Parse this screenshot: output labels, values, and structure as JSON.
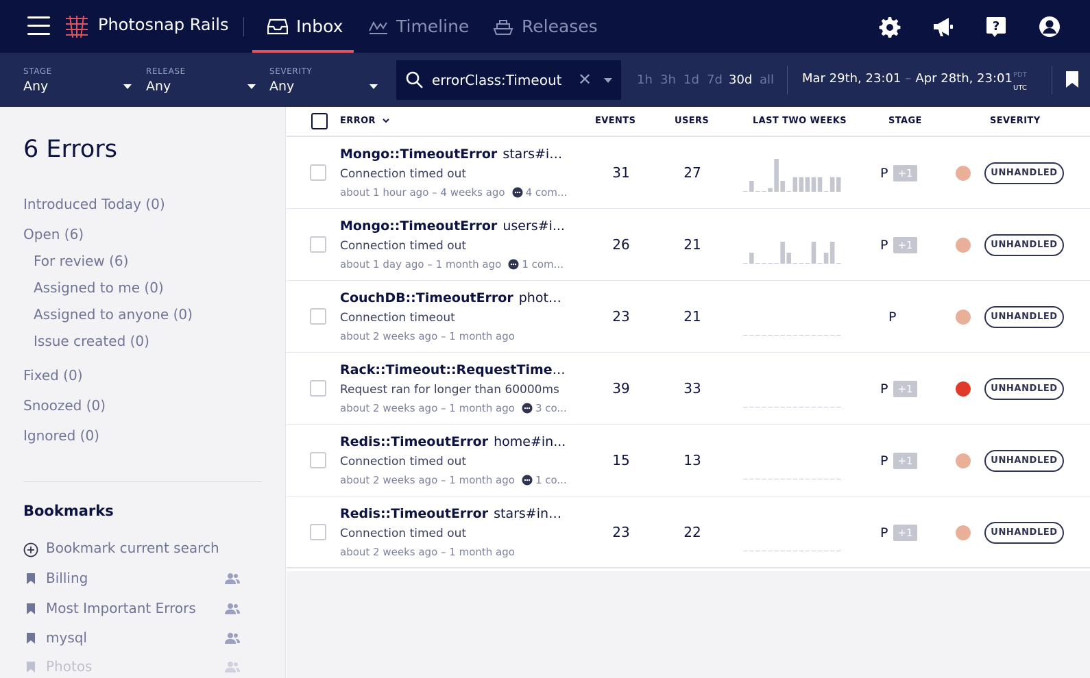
{
  "app": {
    "name": "Photosnap Rails",
    "accent_color": "#e0555d",
    "nav_bg": "#0a1240",
    "filterbar_bg": "#1e2956"
  },
  "nav": {
    "tabs": [
      {
        "label": "Inbox",
        "icon": "inbox-icon",
        "active": true
      },
      {
        "label": "Timeline",
        "icon": "timeline-icon",
        "active": false
      },
      {
        "label": "Releases",
        "icon": "ship-icon",
        "active": false
      }
    ],
    "icons": [
      "gear-icon",
      "megaphone-icon",
      "help-icon",
      "user-icon"
    ]
  },
  "filters": {
    "stage": {
      "label": "STAGE",
      "value": "Any"
    },
    "release": {
      "label": "RELEASE",
      "value": "Any"
    },
    "severity": {
      "label": "SEVERITY",
      "value": "Any"
    }
  },
  "search": {
    "value": "errorClass:Timeout",
    "clear": "✕"
  },
  "time_ranges": [
    {
      "label": "1h",
      "active": false
    },
    {
      "label": "3h",
      "active": false
    },
    {
      "label": "1d",
      "active": false
    },
    {
      "label": "7d",
      "active": false
    },
    {
      "label": "30d",
      "active": true
    },
    {
      "label": "all",
      "active": false
    }
  ],
  "date_range": {
    "from": "Mar 29th, 23:01",
    "separator": "–",
    "to": "Apr 28th, 23:01",
    "tz_top": "PDT",
    "tz_bottom": "UTC"
  },
  "sidebar": {
    "count_title": "6 Errors",
    "links": [
      {
        "label": "Introduced Today (0)"
      },
      {
        "label": "Open (6)"
      },
      {
        "label": "For review (6)"
      },
      {
        "label": "Assigned to me (0)"
      },
      {
        "label": "Assigned to anyone (0)"
      },
      {
        "label": "Issue created (0)"
      },
      {
        "label": "Fixed (0)"
      },
      {
        "label": "Snoozed (0)"
      },
      {
        "label": "Ignored (0)"
      }
    ],
    "bookmarks_title": "Bookmarks",
    "add_bookmark": "Bookmark current search",
    "bookmarks": [
      {
        "label": "Billing",
        "shared": true
      },
      {
        "label": "Most Important Errors",
        "shared": true
      },
      {
        "label": "mysql",
        "shared": true
      },
      {
        "label": "Photos",
        "shared": true
      }
    ]
  },
  "table": {
    "headers": {
      "error": "ERROR",
      "events": "EVENTS",
      "users": "USERS",
      "trend": "LAST TWO WEEKS",
      "stage": "STAGE",
      "severity": "SEVERITY"
    },
    "rows": [
      {
        "error_class": "Mongo::TimeoutError",
        "context": "stars#in...",
        "message": "Connection timed out",
        "time": "about 1 hour ago – 4 weeks ago",
        "comments": "4 com...",
        "events": "31",
        "users": "27",
        "stage": "P",
        "stage_extra": "+1",
        "severity_color": "#e8b098",
        "severity": "UNHANDLED",
        "trend": [
          0,
          3,
          0,
          0,
          1,
          9,
          3,
          0,
          4,
          4,
          4,
          4,
          4,
          0,
          4,
          4
        ]
      },
      {
        "error_class": "Mongo::TimeoutError",
        "context": "users#i...",
        "message": "Connection timed out",
        "time": "about 1 day ago – 1 month ago",
        "comments": "1 com...",
        "events": "26",
        "users": "21",
        "stage": "P",
        "stage_extra": "+1",
        "severity_color": "#e8b098",
        "severity": "UNHANDLED",
        "trend": [
          0,
          3,
          0,
          0,
          0,
          0,
          6,
          3,
          0,
          0,
          0,
          6,
          0,
          3,
          6,
          0
        ]
      },
      {
        "error_class": "CouchDB::TimeoutError",
        "context": "photo...",
        "message": "Connection timeout",
        "time": "about 2 weeks ago – 1 month ago",
        "comments": "",
        "events": "23",
        "users": "21",
        "stage": "P",
        "stage_extra": "",
        "severity_color": "#e8b098",
        "severity": "UNHANDLED",
        "trend": [
          0,
          0,
          0,
          0,
          0,
          0,
          0,
          0,
          0,
          0,
          0,
          0,
          0,
          0,
          0,
          0
        ]
      },
      {
        "error_class": "Rack::Timeout::RequestTimeou...",
        "context": "",
        "message": "Request ran for longer than 60000ms",
        "time": "about 2 weeks ago – 1 month ago",
        "comments": "3 co...",
        "events": "39",
        "users": "33",
        "stage": "P",
        "stage_extra": "+1",
        "severity_color": "#e03a2a",
        "severity": "UNHANDLED",
        "trend": [
          0,
          0,
          0,
          0,
          0,
          0,
          0,
          0,
          0,
          0,
          0,
          0,
          0,
          0,
          0,
          0
        ]
      },
      {
        "error_class": "Redis::TimeoutError",
        "context": "home#in...",
        "message": "Connection timed out",
        "time": "about 2 weeks ago – 1 month ago",
        "comments": "1 co...",
        "events": "15",
        "users": "13",
        "stage": "P",
        "stage_extra": "+1",
        "severity_color": "#e8b098",
        "severity": "UNHANDLED",
        "trend": [
          0,
          0,
          0,
          0,
          0,
          0,
          0,
          0,
          0,
          0,
          0,
          0,
          0,
          0,
          0,
          0
        ]
      },
      {
        "error_class": "Redis::TimeoutError",
        "context": "stars#index",
        "message": "Connection timed out",
        "time": "about 2 weeks ago – 1 month ago",
        "comments": "",
        "events": "23",
        "users": "22",
        "stage": "P",
        "stage_extra": "+1",
        "severity_color": "#e8b098",
        "severity": "UNHANDLED",
        "trend": [
          0,
          0,
          0,
          0,
          0,
          0,
          0,
          0,
          0,
          0,
          0,
          0,
          0,
          0,
          0,
          0
        ]
      }
    ]
  }
}
